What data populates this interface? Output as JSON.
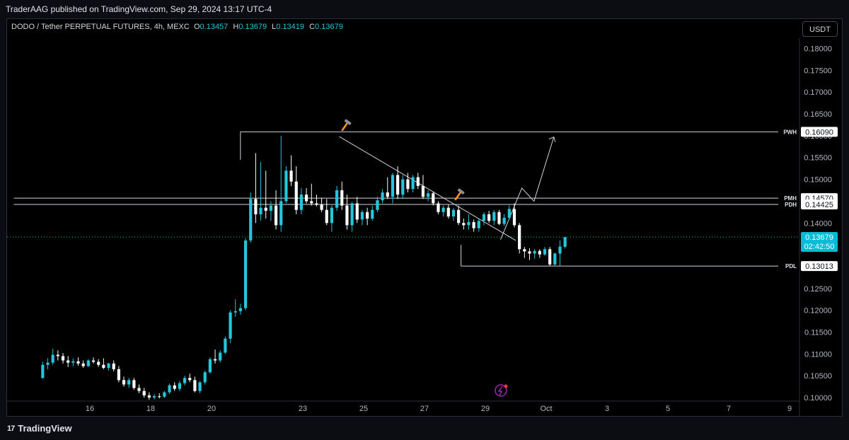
{
  "header": {
    "published_by": "TraderAAG published on TradingView.com, Sep 29, 2024 13:17 UTC-4"
  },
  "legend": {
    "symbol": "DODO / Tether PERPETUAL FUTURES, 4h, MEXC",
    "o_label": "O",
    "o": "0.13457",
    "h_label": "H",
    "h": "0.13679",
    "l_label": "L",
    "l": "0.13419",
    "c_label": "C",
    "c": "0.13679"
  },
  "currency": "USDT",
  "footer": {
    "brand": "TradingView"
  },
  "colors": {
    "up": "#26c6da",
    "down": "#ffffff",
    "price_tag": "#00bcd4",
    "background": "#000000"
  },
  "chart_data": {
    "type": "candlestick",
    "ylim": [
      0.1,
      0.1825
    ],
    "y_ticks": [
      "0.18000",
      "0.17500",
      "0.17000",
      "0.16500",
      "0.16000",
      "0.15500",
      "0.15000",
      "0.14500",
      "0.14000",
      "0.13500",
      "0.13000",
      "0.12500",
      "0.12000",
      "0.11500",
      "0.11000",
      "0.10500",
      "0.10000"
    ],
    "x_ticks": [
      {
        "label": "16",
        "day": 16
      },
      {
        "label": "18",
        "day": 18
      },
      {
        "label": "20",
        "day": 20
      },
      {
        "label": "23",
        "day": 23
      },
      {
        "label": "25",
        "day": 25
      },
      {
        "label": "27",
        "day": 27
      },
      {
        "label": "29",
        "day": 29
      },
      {
        "label": "Oct",
        "day": 31
      },
      {
        "label": "3",
        "day": 33
      },
      {
        "label": "5",
        "day": 35
      },
      {
        "label": "7",
        "day": 37
      },
      {
        "label": "9",
        "day": 39
      }
    ],
    "price_lines": [
      {
        "name": "PWH",
        "value": "0.16090"
      },
      {
        "name": "PMH",
        "value": "0.14570"
      },
      {
        "name": "PDH",
        "value": "0.14425"
      },
      {
        "name": "PDL",
        "value": "0.13013"
      }
    ],
    "current_price": {
      "value": "0.13679",
      "countdown": "02:42:50"
    },
    "candles": [
      [
        0.1045,
        0.1082,
        0.1043,
        0.1075
      ],
      [
        0.1075,
        0.109,
        0.1065,
        0.108
      ],
      [
        0.108,
        0.1112,
        0.1075,
        0.1098
      ],
      [
        0.1098,
        0.1108,
        0.1085,
        0.1095
      ],
      [
        0.1095,
        0.1102,
        0.1078,
        0.1085
      ],
      [
        0.1085,
        0.1095,
        0.107,
        0.108
      ],
      [
        0.108,
        0.109,
        0.1072,
        0.1083
      ],
      [
        0.1083,
        0.1092,
        0.1073,
        0.1078
      ],
      [
        0.1078,
        0.1085,
        0.1068,
        0.1072
      ],
      [
        0.1072,
        0.1088,
        0.107,
        0.1085
      ],
      [
        0.1085,
        0.1092,
        0.1078,
        0.1082
      ],
      [
        0.1082,
        0.1088,
        0.107,
        0.1075
      ],
      [
        0.1075,
        0.109,
        0.1065,
        0.1068
      ],
      [
        0.1068,
        0.108,
        0.1062,
        0.1078
      ],
      [
        0.1078,
        0.1085,
        0.106,
        0.1065
      ],
      [
        0.1065,
        0.1072,
        0.1035,
        0.104
      ],
      [
        0.104,
        0.1048,
        0.1025,
        0.103
      ],
      [
        0.103,
        0.1045,
        0.1022,
        0.104
      ],
      [
        0.104,
        0.1045,
        0.1018,
        0.1022
      ],
      [
        0.1022,
        0.103,
        0.101,
        0.1015
      ],
      [
        0.1015,
        0.1022,
        0.1,
        0.1005
      ],
      [
        0.1005,
        0.1012,
        0.0995,
        0.1
      ],
      [
        0.1,
        0.1008,
        0.0996,
        0.1003
      ],
      [
        0.1003,
        0.101,
        0.0998,
        0.1002
      ],
      [
        0.1002,
        0.1015,
        0.0999,
        0.1012
      ],
      [
        0.1012,
        0.1032,
        0.1008,
        0.1028
      ],
      [
        0.1028,
        0.1035,
        0.1015,
        0.102
      ],
      [
        0.102,
        0.1038,
        0.1015,
        0.1033
      ],
      [
        0.1033,
        0.105,
        0.1028,
        0.1045
      ],
      [
        0.1045,
        0.1055,
        0.1035,
        0.104
      ],
      [
        0.104,
        0.1048,
        0.1012,
        0.1015
      ],
      [
        0.1015,
        0.1038,
        0.101,
        0.1035
      ],
      [
        0.1035,
        0.1062,
        0.103,
        0.1058
      ],
      [
        0.1058,
        0.1092,
        0.1055,
        0.1088
      ],
      [
        0.1088,
        0.111,
        0.1078,
        0.1085
      ],
      [
        0.1085,
        0.1108,
        0.108,
        0.1103
      ],
      [
        0.1103,
        0.114,
        0.11,
        0.1135
      ],
      [
        0.1135,
        0.12,
        0.1125,
        0.1195
      ],
      [
        0.1195,
        0.1225,
        0.1185,
        0.1198
      ],
      [
        0.1198,
        0.1215,
        0.119,
        0.1205
      ],
      [
        0.1205,
        0.1365,
        0.12,
        0.136
      ],
      [
        0.136,
        0.147,
        0.1355,
        0.1455
      ],
      [
        0.1455,
        0.156,
        0.14,
        0.142
      ],
      [
        0.142,
        0.154,
        0.1405,
        0.1435
      ],
      [
        0.1435,
        0.152,
        0.141,
        0.1428
      ],
      [
        0.1428,
        0.145,
        0.1405,
        0.144
      ],
      [
        0.144,
        0.1475,
        0.1385,
        0.1395
      ],
      [
        0.1395,
        0.16,
        0.138,
        0.145
      ],
      [
        0.145,
        0.153,
        0.1445,
        0.152
      ],
      [
        0.152,
        0.1555,
        0.1485,
        0.1495
      ],
      [
        0.1495,
        0.153,
        0.142,
        0.143
      ],
      [
        0.143,
        0.148,
        0.142,
        0.1465
      ],
      [
        0.1465,
        0.148,
        0.1445,
        0.145
      ],
      [
        0.145,
        0.149,
        0.144,
        0.1445
      ],
      [
        0.1445,
        0.1465,
        0.1438,
        0.1442
      ],
      [
        0.1442,
        0.1458,
        0.1425,
        0.143
      ],
      [
        0.143,
        0.1455,
        0.1395,
        0.14
      ],
      [
        0.14,
        0.144,
        0.138,
        0.1435
      ],
      [
        0.1435,
        0.1485,
        0.1428,
        0.1475
      ],
      [
        0.1475,
        0.1495,
        0.143,
        0.144
      ],
      [
        0.144,
        0.1465,
        0.1385,
        0.1395
      ],
      [
        0.1395,
        0.1448,
        0.138,
        0.1445
      ],
      [
        0.1445,
        0.146,
        0.14,
        0.1408
      ],
      [
        0.1408,
        0.143,
        0.1395,
        0.1425
      ],
      [
        0.1425,
        0.1435,
        0.1395,
        0.141
      ],
      [
        0.141,
        0.144,
        0.1405,
        0.143
      ],
      [
        0.143,
        0.146,
        0.1425,
        0.1452
      ],
      [
        0.1452,
        0.1478,
        0.1445,
        0.147
      ],
      [
        0.147,
        0.1505,
        0.1455,
        0.146
      ],
      [
        0.146,
        0.1515,
        0.1445,
        0.151
      ],
      [
        0.151,
        0.153,
        0.1455,
        0.1465
      ],
      [
        0.1465,
        0.151,
        0.1455,
        0.15
      ],
      [
        0.15,
        0.1515,
        0.147,
        0.1478
      ],
      [
        0.1478,
        0.151,
        0.147,
        0.1505
      ],
      [
        0.1505,
        0.1515,
        0.1478,
        0.1485
      ],
      [
        0.1485,
        0.151,
        0.1455,
        0.146
      ],
      [
        0.146,
        0.1475,
        0.145,
        0.1468
      ],
      [
        0.1468,
        0.1472,
        0.144,
        0.1445
      ],
      [
        0.1445,
        0.145,
        0.142,
        0.1425
      ],
      [
        0.1425,
        0.144,
        0.1415,
        0.1435
      ],
      [
        0.1435,
        0.1442,
        0.141,
        0.1415
      ],
      [
        0.1415,
        0.1435,
        0.1405,
        0.143
      ],
      [
        0.143,
        0.144,
        0.1395,
        0.14
      ],
      [
        0.14,
        0.141,
        0.1385,
        0.1395
      ],
      [
        0.1395,
        0.142,
        0.1385,
        0.1402
      ],
      [
        0.1402,
        0.1408,
        0.138,
        0.1388
      ],
      [
        0.1388,
        0.141,
        0.138,
        0.1405
      ],
      [
        0.1405,
        0.1425,
        0.1395,
        0.142
      ],
      [
        0.142,
        0.1428,
        0.14,
        0.1405
      ],
      [
        0.1405,
        0.143,
        0.1395,
        0.1425
      ],
      [
        0.1425,
        0.143,
        0.1395,
        0.1398
      ],
      [
        0.1398,
        0.142,
        0.1393,
        0.1412
      ],
      [
        0.1412,
        0.144,
        0.1408,
        0.1432
      ],
      [
        0.1432,
        0.1445,
        0.139,
        0.1395
      ],
      [
        0.1395,
        0.14,
        0.133,
        0.134
      ],
      [
        0.134,
        0.1345,
        0.132,
        0.1335
      ],
      [
        0.1335,
        0.1342,
        0.1315,
        0.133
      ],
      [
        0.133,
        0.134,
        0.1318,
        0.1336
      ],
      [
        0.1336,
        0.134,
        0.132,
        0.1328
      ],
      [
        0.1328,
        0.1345,
        0.1325,
        0.134
      ],
      [
        0.134,
        0.1345,
        0.1302,
        0.1305
      ],
      [
        0.1305,
        0.1332,
        0.1301,
        0.133
      ],
      [
        0.133,
        0.136,
        0.1302,
        0.1346
      ],
      [
        0.13457,
        0.13679,
        0.13419,
        0.13679
      ]
    ],
    "candle_layout": {
      "first_day": 14.45,
      "step_days": 0.1667
    },
    "projection_path": [
      {
        "day": 29.5,
        "price": 0.1362
      },
      {
        "day": 30.2,
        "price": 0.148
      },
      {
        "day": 30.6,
        "price": 0.145
      },
      {
        "day": 31.25,
        "price": 0.1597
      }
    ],
    "trendline": [
      {
        "day": 24.2,
        "price": 0.1598
      },
      {
        "day": 30.0,
        "price": 0.136
      }
    ],
    "zone_lines": [
      {
        "name": "PWH",
        "day_start": 20.95,
        "price": 0.1609
      },
      {
        "name": "PMH",
        "day_start": 13.5,
        "price": 0.1457
      },
      {
        "name": "PDH",
        "day_start": 13.5,
        "price": 0.14425
      },
      {
        "name": "PDL",
        "day_start": 28.2,
        "price": 0.13013
      }
    ]
  }
}
